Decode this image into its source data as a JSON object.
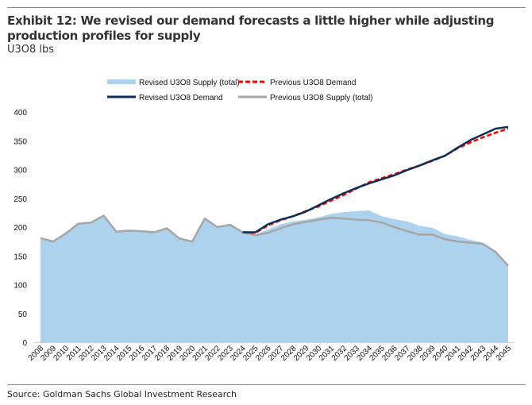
{
  "title": "Exhibit 12: We revised our demand forecasts a little higher while adjusting production profiles for supply",
  "subtitle": "U3O8 lbs",
  "source": "Source: Goldman Sachs Global Investment Research",
  "chart_data": {
    "type": "line",
    "title": "Exhibit 12: We revised our demand forecasts a little higher while adjusting production profiles for supply",
    "ylabel": "U3O8 lbs",
    "xlabel": "",
    "ylim": [
      0,
      400
    ],
    "yticks": [
      0,
      50,
      100,
      150,
      200,
      250,
      300,
      350,
      400
    ],
    "grid": false,
    "legend_position": "top-center",
    "x": [
      "2008",
      "2009",
      "2010",
      "2011",
      "2012",
      "2013",
      "2014",
      "2015",
      "2016",
      "2017",
      "2018",
      "2019",
      "2020",
      "2021",
      "2022",
      "2023",
      "2024",
      "2025",
      "2026",
      "2027",
      "2028",
      "2029",
      "2030",
      "2031",
      "2032",
      "2033",
      "2034",
      "2035",
      "2036",
      "2037",
      "2038",
      "2039",
      "2040",
      "2041",
      "2042",
      "2043",
      "2044",
      "2045"
    ],
    "series": [
      {
        "name": "Revised U3O8 Supply (total)",
        "style": "area",
        "color": "#acd2ee",
        "values": [
          181,
          175,
          189,
          206,
          208,
          220,
          192,
          194,
          193,
          191,
          198,
          180,
          175,
          215,
          200,
          204,
          191,
          187,
          196,
          205,
          210,
          213,
          217,
          223,
          226,
          228,
          229,
          219,
          214,
          210,
          202,
          199,
          188,
          184,
          178,
          173,
          155,
          133
        ]
      },
      {
        "name": "Previous U3O8 Demand",
        "style": "dashed",
        "color": "#ff0000",
        "values": [
          null,
          null,
          null,
          null,
          null,
          null,
          null,
          null,
          null,
          null,
          null,
          null,
          null,
          null,
          null,
          null,
          191,
          190,
          203,
          212,
          219,
          228,
          236,
          246,
          256,
          267,
          278,
          285,
          292,
          300,
          307,
          315,
          324,
          337,
          347,
          356,
          364,
          371
        ]
      },
      {
        "name": "Revised U3O8 Demand",
        "style": "solid",
        "color": "#0d2f57",
        "values": [
          null,
          null,
          null,
          null,
          null,
          null,
          null,
          null,
          null,
          null,
          null,
          null,
          null,
          null,
          null,
          null,
          191,
          191,
          205,
          213,
          219,
          227,
          238,
          249,
          259,
          268,
          276,
          283,
          290,
          299,
          307,
          316,
          324,
          338,
          351,
          361,
          371,
          374
        ]
      },
      {
        "name": "Previous U3O8 Supply (total)",
        "style": "solid",
        "color": "#a6a6a6",
        "values": [
          181,
          175,
          189,
          206,
          208,
          220,
          192,
          194,
          193,
          191,
          198,
          180,
          175,
          215,
          200,
          204,
          191,
          186,
          190,
          198,
          205,
          209,
          213,
          216,
          215,
          213,
          212,
          208,
          200,
          193,
          187,
          187,
          179,
          175,
          173,
          171,
          157,
          133
        ]
      }
    ]
  }
}
